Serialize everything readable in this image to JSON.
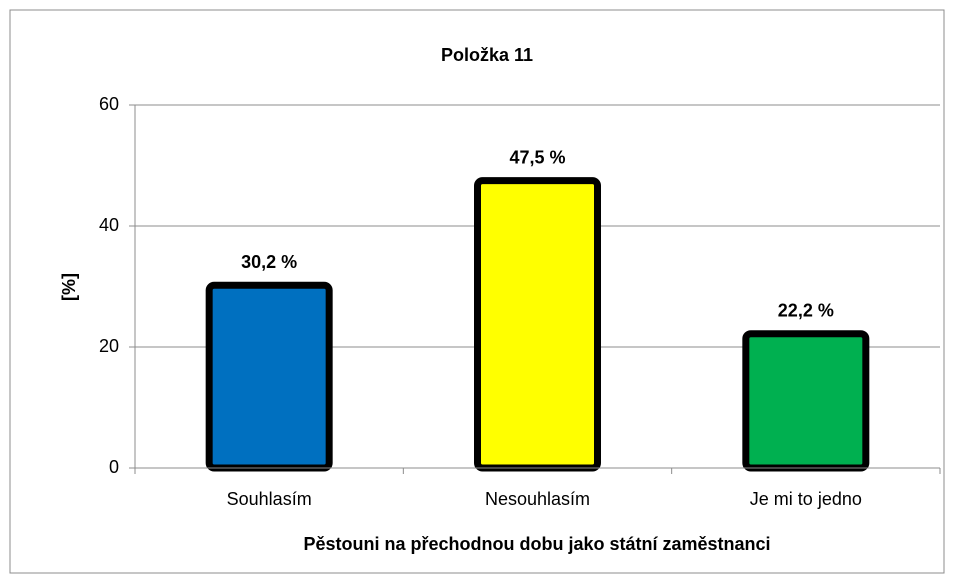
{
  "chart_data": {
    "type": "bar",
    "title": "Položka 11",
    "categories": [
      "Souhlasím",
      "Nesouhlasím",
      "Je mi to jedno"
    ],
    "values": [
      30.2,
      47.5,
      22.2
    ],
    "value_labels": [
      "30,2 %",
      "47,5 %",
      "22,2 %"
    ],
    "colors": [
      "#0070c0",
      "#ffff00",
      "#00b050"
    ],
    "ylabel": "[%]",
    "xlabel": "Pěstouni na přechodnou dobu jako státní zaměstnanci",
    "ylim": [
      0,
      60
    ],
    "yticks": [
      0,
      20,
      40,
      60
    ],
    "grid": true
  }
}
